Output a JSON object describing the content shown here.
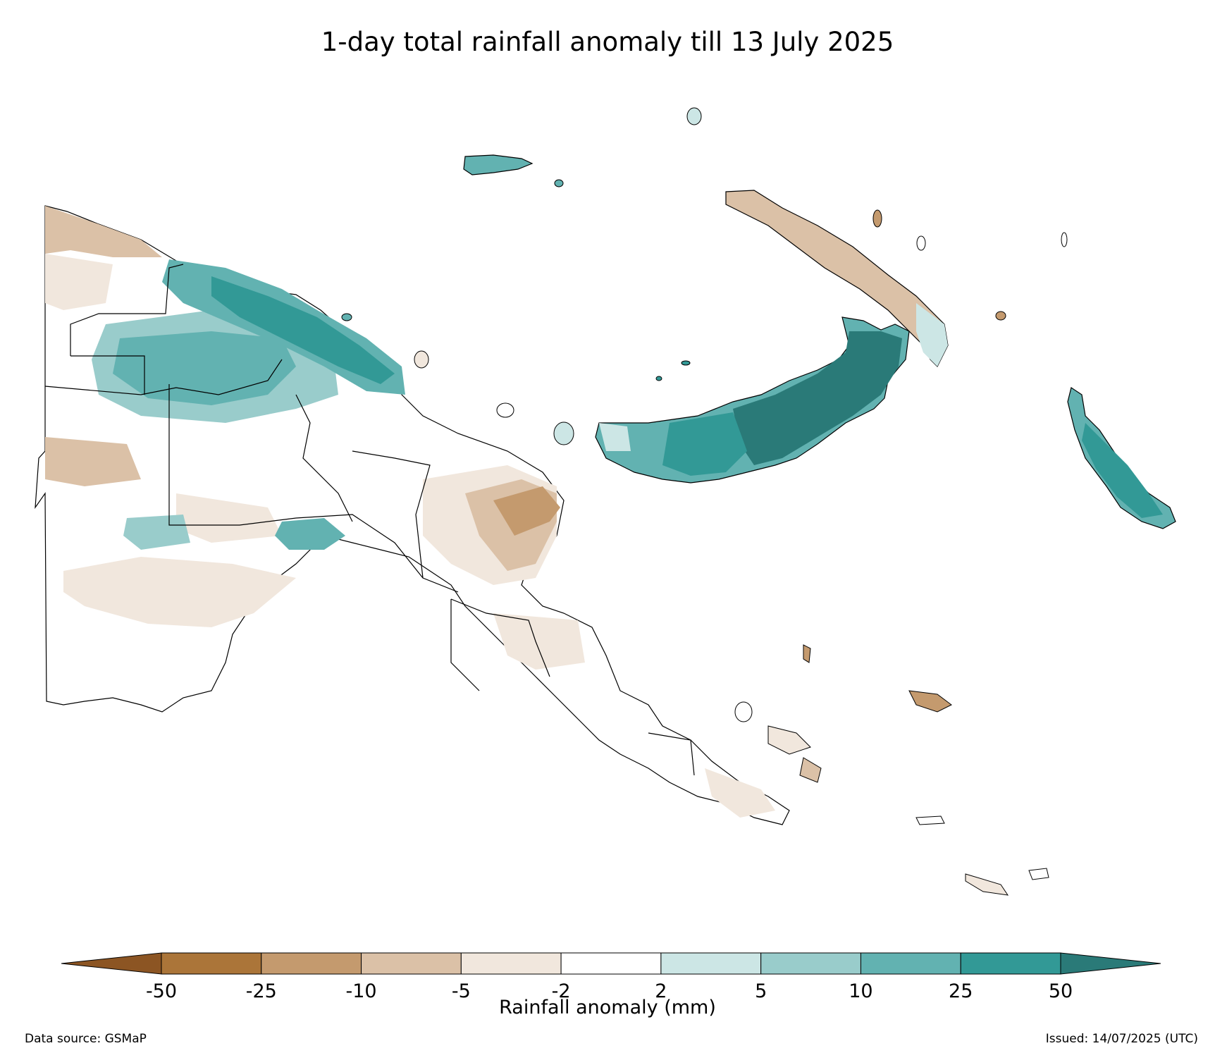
{
  "title": "1-day total rainfall anomaly till 13 July 2025",
  "colorbar": {
    "label": "Rainfall anomaly (mm)",
    "ticks": [
      "-50",
      "-25",
      "-10",
      "-5",
      "-2",
      "2",
      "5",
      "10",
      "25",
      "50"
    ],
    "bins": [
      {
        "range": "< -50",
        "color": "#8c5523"
      },
      {
        "range": "-50 to -25",
        "color": "#ab7539"
      },
      {
        "range": "-25 to -10",
        "color": "#c49a6e"
      },
      {
        "range": "-10 to -5",
        "color": "#dbc1a7"
      },
      {
        "range": "-5 to -2",
        "color": "#f1e7dd"
      },
      {
        "range": "-2 to 2",
        "color": "#ffffff"
      },
      {
        "range": "2 to 5",
        "color": "#cce6e5"
      },
      {
        "range": "5 to 10",
        "color": "#99cccb"
      },
      {
        "range": "10 to 25",
        "color": "#62b2b1"
      },
      {
        "range": "25 to 50",
        "color": "#329996"
      },
      {
        "range": "> 50",
        "color": "#2a7a78"
      }
    ],
    "extend": "both"
  },
  "footer": {
    "source": "Data source: GSMaP",
    "issued": "Issued: 14/07/2025 (UTC)"
  },
  "map": {
    "region": "Papua New Guinea",
    "outline_color": "#000000"
  }
}
